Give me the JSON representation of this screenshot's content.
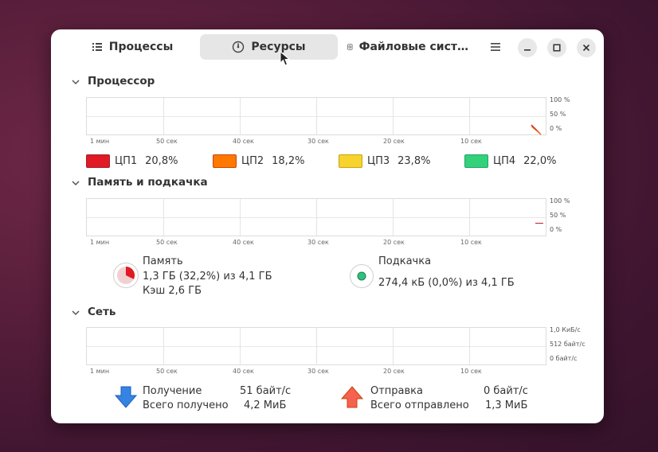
{
  "tabs": [
    {
      "label": "Процессы",
      "icon": "list-icon"
    },
    {
      "label": "Ресурсы",
      "icon": "gauge-icon"
    },
    {
      "label": "Файловые сист…",
      "icon": "disk-icon"
    }
  ],
  "sections": {
    "cpu": {
      "title": "Процессор",
      "x_ticks": [
        "1 мин",
        "50 сек",
        "40 сек",
        "30 сек",
        "20 сек",
        "10 сек"
      ],
      "y_ticks": [
        "100 %",
        "50 %",
        "0 %"
      ],
      "cores": [
        {
          "label": "ЦП1",
          "value": "20,8%",
          "color": "#e01b24"
        },
        {
          "label": "ЦП2",
          "value": "18,2%",
          "color": "#ff7800"
        },
        {
          "label": "ЦП3",
          "value": "23,8%",
          "color": "#f6d32d"
        },
        {
          "label": "ЦП4",
          "value": "22,0%",
          "color": "#33d17a"
        }
      ]
    },
    "memory": {
      "title": "Память и подкачка",
      "x_ticks": [
        "1 мин",
        "50 сек",
        "40 сек",
        "30 сек",
        "20 сек",
        "10 сек"
      ],
      "y_ticks": [
        "100 %",
        "50 %",
        "0 %"
      ],
      "mem_label": "Память",
      "mem_value": "1,3 ГБ (32,2%) из 4,1 ГБ",
      "mem_cache": "Кэш 2,6 ГБ",
      "mem_fraction": 0.322,
      "swap_label": "Подкачка",
      "swap_value": "274,4 кБ (0,0%) из 4,1 ГБ"
    },
    "network": {
      "title": "Сеть",
      "x_ticks": [
        "1 мин",
        "50 сек",
        "40 сек",
        "30 сек",
        "20 сек",
        "10 сек"
      ],
      "y_ticks": [
        "1,0 КиБ/с",
        "512 байт/с",
        "0 байт/с"
      ],
      "recv_label": "Получение",
      "recv_value": "51 байт/с",
      "recv_total_label": "Всего получено",
      "recv_total_value": "4,2 МиБ",
      "send_label": "Отправка",
      "send_value": "0 байт/с",
      "send_total_label": "Всего отправлено",
      "send_total_value": "1,3 МиБ"
    }
  }
}
